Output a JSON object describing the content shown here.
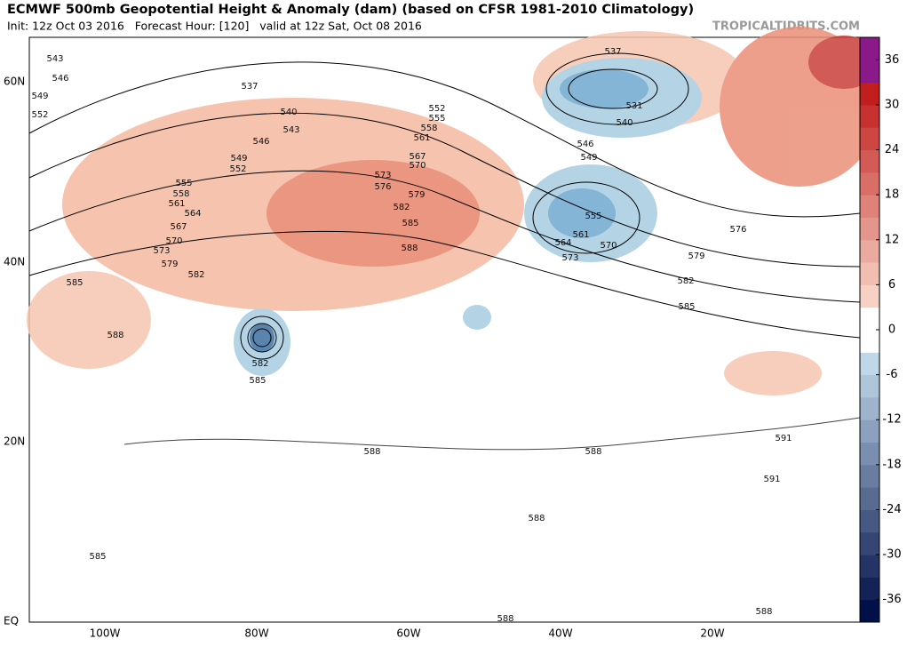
{
  "header": {
    "title": "ECMWF 500mb Geopotential Height & Anomaly (dam) (based on CFSR 1981-2010 Climatology)",
    "subtitle": "Init: 12z Oct 03 2016   Forecast Hour: [120]   valid at 12z Sat, Oct 08 2016",
    "watermark": "TROPICALTIDBITS.COM"
  },
  "map": {
    "lat_labels": [
      "60N",
      "40N",
      "20N",
      "EQ"
    ],
    "lon_labels": [
      "100W",
      "80W",
      "60W",
      "40W",
      "20W"
    ],
    "contour_labels": [
      "543",
      "546",
      "549",
      "552",
      "537",
      "540",
      "543",
      "546",
      "549",
      "552",
      "555",
      "558",
      "561",
      "564",
      "567",
      "570",
      "573",
      "579",
      "582",
      "585",
      "588",
      "552",
      "555",
      "558",
      "561",
      "567",
      "570",
      "573",
      "576",
      "579",
      "582",
      "585",
      "588",
      "537",
      "531",
      "540",
      "546",
      "549",
      "555",
      "561",
      "564",
      "570",
      "573",
      "576",
      "579",
      "582",
      "585",
      "582",
      "585",
      "588",
      "588",
      "591",
      "591",
      "588",
      "585",
      "588",
      "588"
    ]
  },
  "colorbar": {
    "ticks": [
      36,
      30,
      24,
      18,
      12,
      6,
      0,
      -6,
      -12,
      -18,
      -24,
      -30,
      -36
    ],
    "lim": [
      -39,
      39
    ]
  }
}
